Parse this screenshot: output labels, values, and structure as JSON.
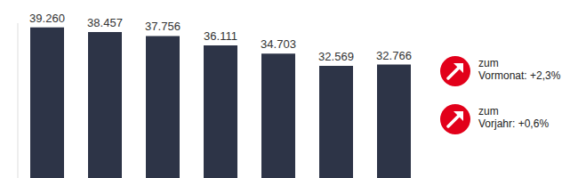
{
  "chart_data": {
    "type": "bar",
    "categories": [
      null,
      null,
      null,
      null,
      null,
      null,
      null
    ],
    "values": [
      39260,
      38457,
      37756,
      36111,
      34703,
      32569,
      32766
    ],
    "value_labels": [
      "39.260",
      "38.457",
      "37.756",
      "36.111",
      "34.703",
      "32.569",
      "32.766"
    ],
    "color": "#2d3447",
    "ylim": [
      13000,
      40000
    ],
    "yticks": [],
    "grid": false,
    "data_labels": true,
    "tick_labels": false,
    "annotations": [
      [
        "zum",
        "Vormonat: +2,3%"
      ],
      [
        "zum",
        "Vorjahr: +0,6%"
      ]
    ]
  }
}
